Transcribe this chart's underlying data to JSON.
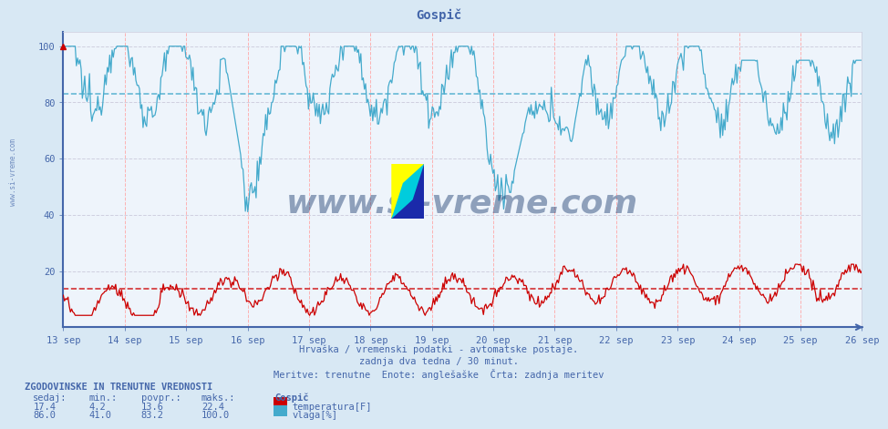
{
  "title": "Gospič",
  "bg_color": "#d8e8f4",
  "plot_bg_color": "#eef4fb",
  "x_label_color": "#4466aa",
  "y_label_color": "#4466aa",
  "temp_color": "#cc0000",
  "humidity_color": "#44aacc",
  "x_ticks": [
    "13 sep",
    "14 sep",
    "15 sep",
    "16 sep",
    "17 sep",
    "18 sep",
    "19 sep",
    "20 sep",
    "21 sep",
    "22 sep",
    "23 sep",
    "24 sep",
    "25 sep",
    "26 sep"
  ],
  "ylim": [
    0,
    105
  ],
  "yticks": [
    20,
    40,
    60,
    80,
    100
  ],
  "temp_avg": 13.6,
  "temp_min": 4.2,
  "temp_max": 22.4,
  "temp_current": 17.4,
  "hum_avg": 83.2,
  "hum_min": 41.0,
  "hum_max": 100.0,
  "hum_current": 86.0,
  "subtitle1": "Hrvaška / vremenski podatki - avtomatske postaje.",
  "subtitle2": "zadnja dva tedna / 30 minut.",
  "subtitle3": "Meritve: trenutne  Enote: anglešaške  Črta: zadnja meritev",
  "footer_title": "ZGODOVINSKE IN TRENUTNE VREDNOSTI",
  "footer_col1": "sedaj:",
  "footer_col2": "min.:",
  "footer_col3": "povpr.:",
  "footer_col4": "maks.:",
  "footer_station": "Gospič",
  "footer_temp_label": "temperatura[F]",
  "footer_hum_label": "vlaga[%]",
  "watermark": "www.si-vreme.com",
  "watermark_color": "#1a3a6e",
  "spine_color": "#4466aa",
  "hgrid_color": "#ccccdd",
  "vgrid_color": "#ffaaaa",
  "avg_hum_color": "#44aacc",
  "avg_temp_color": "#cc0000"
}
